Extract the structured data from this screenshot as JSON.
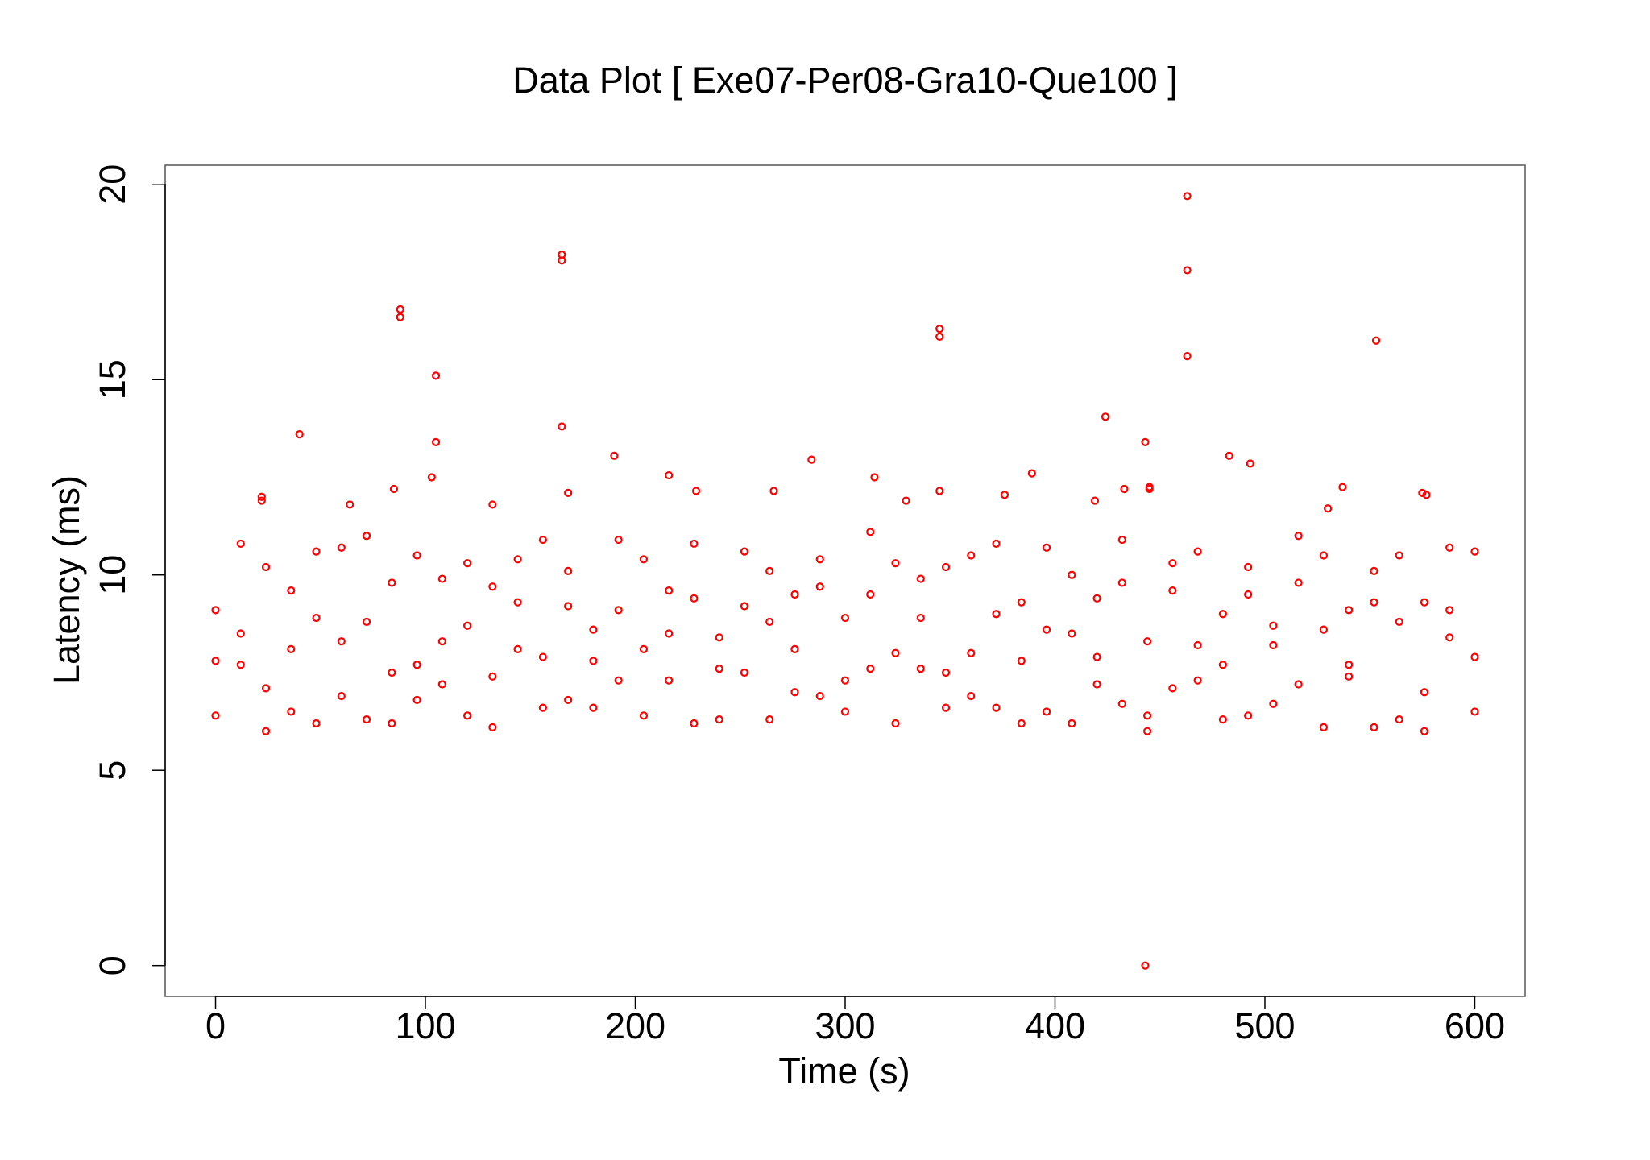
{
  "chart_data": {
    "type": "scatter",
    "title": "Data Plot [ Exe07-Per08-Gra10-Que100 ]",
    "x_label": "Time (s)",
    "y_label": "Latency (ms)",
    "xlim": [
      -24,
      624
    ],
    "ylim": [
      -0.79,
      20.49
    ],
    "xticks": [
      0,
      100,
      200,
      300,
      400,
      500,
      600
    ],
    "yticks": [
      0,
      5,
      10,
      15,
      20
    ],
    "marker": "open-circle",
    "series": [
      {
        "color": "#ff0000",
        "x": [
          0,
          12,
          24,
          36,
          48,
          60,
          72,
          84,
          96,
          108,
          120,
          132,
          144,
          156,
          168,
          180,
          192,
          204,
          216,
          228,
          240,
          252,
          264,
          276,
          288,
          300,
          312,
          324,
          336,
          348,
          360,
          372,
          384,
          396,
          408,
          420,
          432,
          444,
          456,
          468,
          480,
          492,
          504,
          516,
          528,
          540,
          552,
          564,
          576,
          588,
          600
        ],
        "values": [
          6.4,
          10.8,
          7.1,
          9.6,
          6.2,
          8.3,
          11.0,
          7.5,
          6.8,
          9.9,
          8.7,
          6.1,
          10.4,
          7.9,
          9.2,
          6.6,
          10.9,
          8.1,
          7.3,
          9.4,
          6.3,
          10.6,
          8.8,
          7.0,
          9.7,
          6.5,
          11.1,
          8.0,
          7.6,
          10.2,
          6.9,
          9.0,
          6.2,
          10.7,
          8.5,
          7.2,
          9.8,
          6.4,
          10.3,
          8.2,
          7.7,
          9.5,
          6.7,
          11.0,
          8.6,
          7.4,
          10.1,
          6.3,
          9.3,
          8.4,
          10.6
        ]
      },
      {
        "color": "#ff0000",
        "x": [
          0,
          12,
          24,
          36,
          48,
          60,
          72,
          84,
          96,
          108,
          120,
          132,
          144,
          156,
          168,
          180,
          192,
          204,
          216,
          228,
          240,
          252,
          264,
          276,
          288,
          300,
          312,
          324,
          336,
          348,
          360,
          372,
          384,
          396,
          408,
          420,
          432,
          444,
          456,
          468,
          480,
          492,
          504,
          516,
          528,
          540,
          552,
          564,
          576,
          588,
          600
        ],
        "values": [
          9.1,
          7.7,
          10.2,
          6.5,
          8.9,
          10.7,
          6.3,
          9.8,
          10.5,
          7.2,
          6.4,
          9.7,
          8.1,
          10.9,
          6.8,
          8.6,
          7.3,
          10.4,
          9.6,
          6.2,
          8.4,
          7.5,
          10.1,
          9.5,
          6.9,
          8.9,
          7.6,
          10.3,
          9.9,
          6.6,
          8.0,
          10.8,
          7.8,
          6.5,
          10.0,
          9.4,
          6.7,
          8.3,
          7.1,
          10.6,
          9.0,
          6.4,
          8.7,
          7.2,
          10.5,
          9.1,
          6.1,
          8.8,
          7.0,
          10.7,
          7.9
        ]
      },
      {
        "color": "#ff0000",
        "x": [
          0,
          12,
          24,
          36,
          48,
          60,
          72,
          84,
          96,
          108,
          120,
          132,
          144,
          156,
          168,
          180,
          192,
          204,
          216,
          228,
          240,
          252,
          264,
          276,
          288,
          300,
          312,
          324,
          336,
          348,
          360,
          372,
          384,
          396,
          408,
          420,
          432,
          444,
          456,
          468,
          480,
          492,
          504,
          516,
          528,
          540,
          552,
          564,
          576,
          588,
          600
        ],
        "values": [
          7.8,
          8.5,
          6.0,
          8.1,
          10.6,
          6.9,
          8.8,
          6.2,
          7.7,
          8.3,
          10.3,
          7.4,
          9.3,
          6.6,
          10.1,
          7.8,
          9.1,
          6.4,
          8.5,
          10.8,
          7.6,
          9.2,
          6.3,
          8.1,
          10.4,
          7.3,
          9.5,
          6.2,
          8.9,
          7.5,
          10.5,
          6.6,
          9.3,
          8.6,
          6.2,
          7.9,
          10.9,
          6.0,
          9.6,
          7.3,
          6.3,
          10.2,
          8.2,
          9.8,
          6.1,
          7.7,
          9.3,
          10.5,
          6.0,
          9.1,
          6.5
        ]
      },
      {
        "color": "#ff0000",
        "x": [
          40,
          85,
          88,
          88,
          103,
          105,
          105,
          165,
          165,
          165,
          168,
          190,
          216,
          229,
          266,
          284,
          314,
          329,
          345,
          345,
          345,
          389,
          376,
          424,
          419,
          433,
          443,
          445,
          445,
          443,
          463,
          463,
          463,
          483,
          493,
          537,
          553,
          575,
          577,
          22,
          22,
          64,
          132,
          530
        ],
        "values": [
          13.6,
          12.2,
          16.8,
          16.6,
          12.5,
          15.1,
          13.4,
          18.2,
          18.05,
          13.8,
          12.1,
          13.05,
          12.55,
          12.15,
          12.15,
          12.95,
          12.5,
          11.9,
          16.3,
          16.1,
          12.15,
          12.6,
          12.05,
          14.05,
          11.9,
          12.2,
          13.4,
          12.25,
          12.2,
          0,
          19.7,
          17.8,
          15.6,
          13.05,
          12.85,
          12.25,
          16.0,
          12.1,
          12.05,
          12.0,
          11.9,
          11.8,
          11.8,
          11.7
        ]
      }
    ]
  }
}
